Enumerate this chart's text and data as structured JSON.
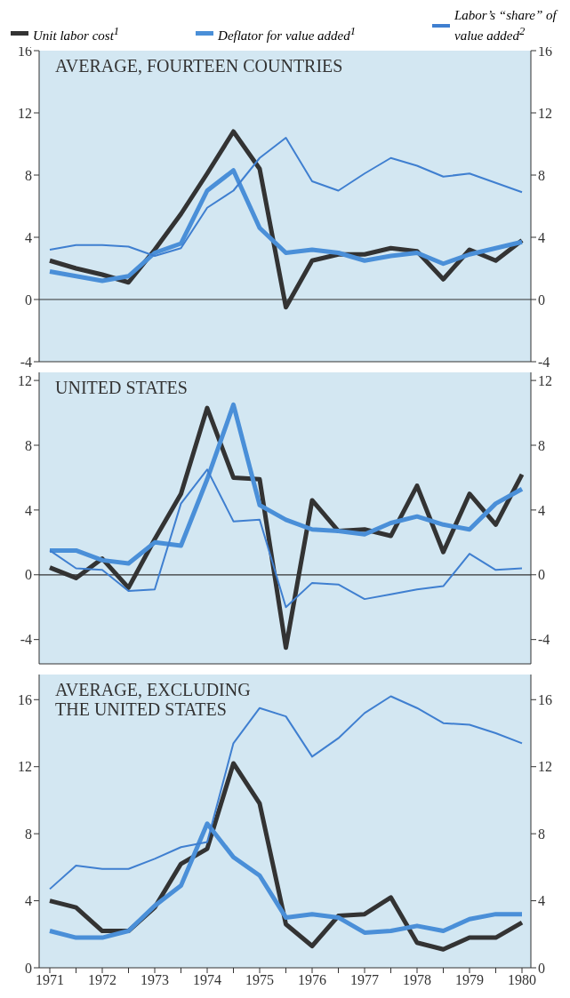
{
  "chart_data": [
    {
      "type": "line",
      "title": "AVERAGE, FOURTEEN COUNTRIES",
      "categories": [
        null,
        null,
        null,
        null,
        null,
        null,
        null,
        null,
        null,
        null,
        null,
        null,
        null,
        null,
        null,
        null,
        null,
        null,
        null
      ],
      "series": [
        {
          "name": "Unit labor cost$^{1}$",
          "color": "#333333",
          "values": [
            2.5,
            2.0,
            1.6,
            1.1,
            3.2,
            5.5,
            8.1,
            10.8,
            8.4,
            -0.5,
            2.5,
            2.9,
            2.9,
            3.3,
            3.1,
            1.3,
            3.2,
            2.5,
            3.8
          ]
        },
        {
          "name": "Deflator for value added$^{1}$",
          "color": "#4a8fd8",
          "values": [
            1.8,
            1.5,
            1.2,
            1.5,
            3.0,
            3.6,
            7.0,
            8.3,
            4.6,
            3.0,
            3.2,
            3.0,
            2.5,
            2.8,
            3.0,
            2.3,
            2.9,
            3.3,
            3.7
          ]
        },
        {
          "name": "Labor’s “share” of value added$^{2}$",
          "color": "#3f7fd0",
          "values": [
            3.2,
            3.5,
            3.5,
            3.4,
            2.8,
            3.3,
            5.9,
            7.0,
            9.1,
            10.4,
            7.6,
            7.0,
            8.1,
            9.1,
            8.6,
            7.9,
            8.1,
            7.5,
            6.9
          ]
        }
      ],
      "ylim": [
        -4,
        16
      ],
      "yticks": [
        -4,
        0,
        4,
        8,
        12,
        16
      ],
      "y2lim": [
        -4,
        16
      ],
      "y2ticks": [
        -4,
        0,
        4,
        8,
        12,
        16
      ],
      "ref_lines": [
        {
          "axis": "y",
          "value": 0,
          "color": "#333333"
        }
      ],
      "legend": "top",
      "tick_labels": "y",
      "grid": false
    },
    {
      "type": "line",
      "title": "UNITED STATES",
      "categories": [
        null,
        null,
        null,
        null,
        null,
        null,
        null,
        null,
        null,
        null,
        null,
        null,
        null,
        null,
        null,
        null,
        null,
        null,
        null
      ],
      "series": [
        {
          "color": "#333333",
          "values": [
            0.45,
            -0.2,
            1.0,
            -0.8,
            2.2,
            5.0,
            10.3,
            6.0,
            5.9,
            -4.5,
            4.6,
            2.7,
            2.8,
            2.4,
            5.5,
            1.4,
            5.0,
            3.1,
            6.2
          ]
        },
        {
          "color": "#4a8fd8",
          "values": [
            1.5,
            1.5,
            0.9,
            0.7,
            2.0,
            1.8,
            5.9,
            10.5,
            4.3,
            3.4,
            2.8,
            2.7,
            2.5,
            3.2,
            3.6,
            3.1,
            2.8,
            4.4,
            5.3
          ]
        },
        {
          "color": "#3f7fd0",
          "values": [
            1.5,
            0.4,
            0.3,
            -1.0,
            -0.9,
            4.4,
            6.5,
            3.3,
            3.4,
            -2.0,
            -0.5,
            -0.6,
            -1.5,
            -1.2,
            -0.9,
            -0.7,
            1.3,
            0.3,
            0.4
          ]
        }
      ],
      "ylim": [
        -5.5,
        12.5
      ],
      "yticks": [
        -4,
        0,
        4,
        8,
        12
      ],
      "y2lim": [
        -5.5,
        12.5
      ],
      "y2ticks": [
        -4,
        0,
        4,
        8,
        12
      ],
      "ref_lines": [
        {
          "axis": "y",
          "value": 0,
          "color": "#333333"
        }
      ],
      "tick_labels": "y",
      "grid": false
    },
    {
      "type": "line",
      "title": "AVERAGE, EXCLUDING THE UNITED STATES",
      "categories": [
        "1971",
        null,
        "1972",
        null,
        "1973",
        null,
        "1974",
        null,
        "1975",
        null,
        "1976",
        null,
        "1977",
        null,
        "1978",
        null,
        "1979",
        null,
        "1980"
      ],
      "series": [
        {
          "color": "#333333",
          "values": [
            4.0,
            3.6,
            2.2,
            2.2,
            3.6,
            6.2,
            7.1,
            12.2,
            9.8,
            2.6,
            1.3,
            3.1,
            3.2,
            4.2,
            1.5,
            1.1,
            1.8,
            1.8,
            2.7
          ]
        },
        {
          "color": "#4a8fd8",
          "values": [
            2.2,
            1.8,
            1.8,
            2.2,
            3.7,
            4.9,
            8.6,
            6.6,
            5.5,
            3.0,
            3.2,
            3.0,
            2.1,
            2.2,
            2.5,
            2.2,
            2.9,
            3.2,
            3.2
          ]
        },
        {
          "color": "#3f7fd0",
          "values": [
            4.7,
            6.1,
            5.9,
            5.9,
            6.5,
            7.2,
            7.5,
            13.4,
            15.5,
            15.0,
            12.6,
            13.7,
            15.2,
            16.2,
            15.5,
            14.6,
            14.5,
            14.0,
            13.4
          ]
        }
      ],
      "ylim": [
        0,
        17.5
      ],
      "yticks": [
        0,
        4,
        8,
        12,
        16
      ],
      "y2lim": [
        0,
        17.5
      ],
      "y2ticks": [
        0,
        4,
        8,
        12,
        16
      ],
      "grid": false
    }
  ]
}
